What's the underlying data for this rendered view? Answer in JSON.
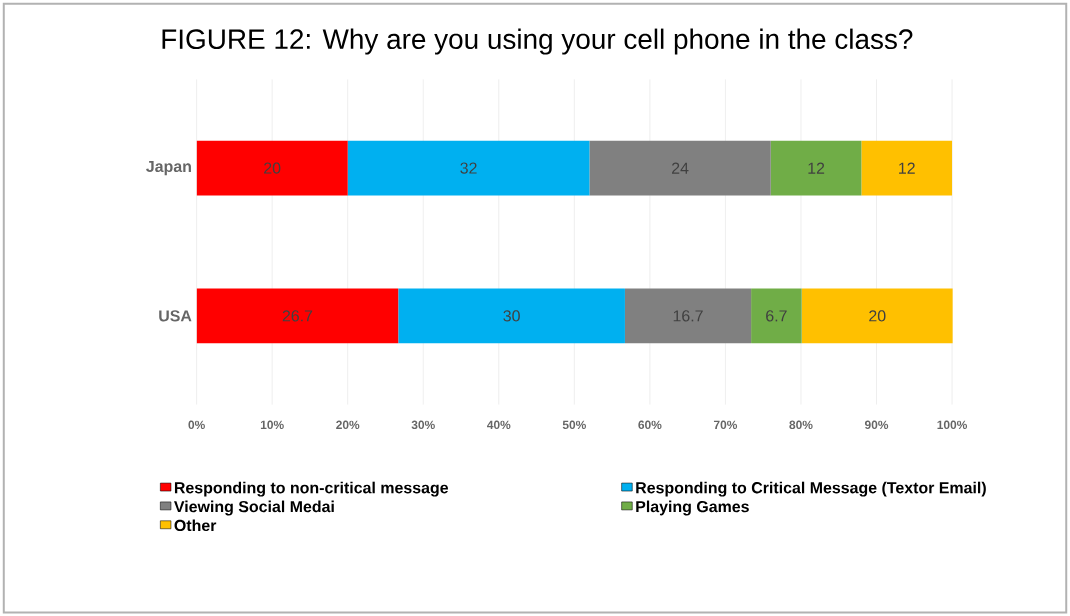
{
  "chart_data": {
    "type": "bar",
    "orientation": "horizontal",
    "stacked": true,
    "title": "FIGURE 12: Why are you using your cell phone in the class?",
    "categories": [
      "Japan",
      "USA"
    ],
    "series": [
      {
        "name": "Responding to non-critical message",
        "color": "#ff0000",
        "values": [
          20,
          26.7
        ]
      },
      {
        "name": "Responding to Critical Message (Textor Email)",
        "color": "#00b0f0",
        "values": [
          32,
          30
        ]
      },
      {
        "name": "Viewing Social Medai",
        "color": "#808080",
        "values": [
          24,
          16.7
        ]
      },
      {
        "name": "Playing Games",
        "color": "#70ad47",
        "values": [
          12,
          6.7
        ]
      },
      {
        "name": "Other",
        "color": "#ffc000",
        "values": [
          12,
          20
        ]
      }
    ],
    "xlim": [
      0,
      100.1
    ],
    "xticks": [
      {
        "value": 0,
        "label": "0%"
      },
      {
        "value": 10,
        "label": "10%"
      },
      {
        "value": 20,
        "label": "20%"
      },
      {
        "value": 30,
        "label": "30%"
      },
      {
        "value": 40,
        "label": "40%"
      },
      {
        "value": 50,
        "label": "50%"
      },
      {
        "value": 60,
        "label": "60%"
      },
      {
        "value": 70,
        "label": "70%"
      },
      {
        "value": 80,
        "label": "80%"
      },
      {
        "value": 90,
        "label": "90%"
      },
      {
        "value": 100,
        "label": "100%"
      }
    ],
    "grid": "x",
    "legend": "bottom",
    "data_labels": true
  }
}
